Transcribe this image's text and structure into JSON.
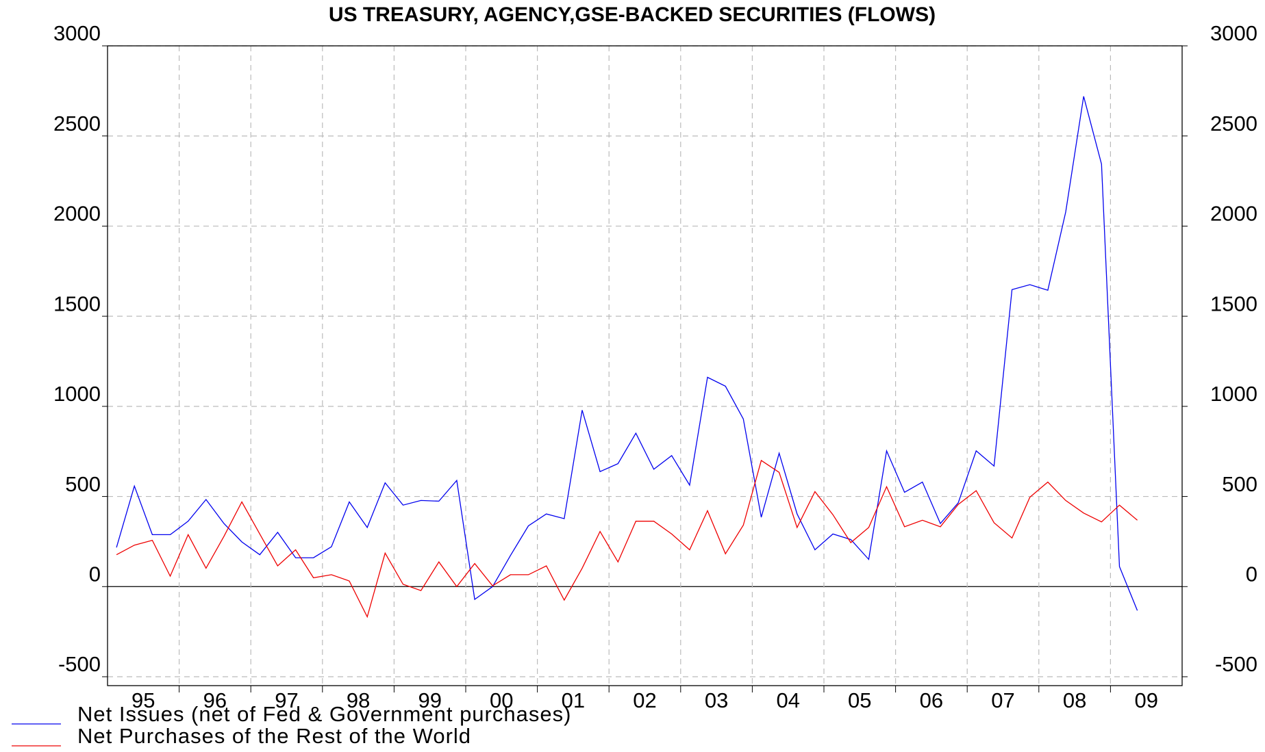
{
  "chart_data": {
    "type": "line",
    "title": "US TREASURY, AGENCY,GSE-BACKED SECURITIES (FLOWS)",
    "x": [
      1995.125,
      1995.375,
      1995.625,
      1995.875,
      1996.125,
      1996.375,
      1996.625,
      1996.875,
      1997.125,
      1997.375,
      1997.625,
      1997.875,
      1998.125,
      1998.375,
      1998.625,
      1998.875,
      1999.125,
      1999.375,
      1999.625,
      1999.875,
      2000.125,
      2000.375,
      2000.625,
      2000.875,
      2001.125,
      2001.375,
      2001.625,
      2001.875,
      2002.125,
      2002.375,
      2002.625,
      2002.875,
      2003.125,
      2003.375,
      2003.625,
      2003.875,
      2004.125,
      2004.375,
      2004.625,
      2004.875,
      2005.125,
      2005.375,
      2005.625,
      2005.875,
      2006.125,
      2006.375,
      2006.625,
      2006.875,
      2007.125,
      2007.375,
      2007.625,
      2007.875,
      2008.125,
      2008.375,
      2008.625,
      2008.875,
      2009.125,
      2009.375
    ],
    "series": [
      {
        "name": "Net Issues (net of Fed & Government purchases)",
        "color": "#0000ee",
        "values": [
          217,
          558,
          288,
          288,
          363,
          483,
          350,
          248,
          177,
          301,
          160,
          160,
          221,
          470,
          328,
          576,
          452,
          478,
          474,
          589,
          -71,
          0,
          173,
          337,
          403,
          377,
          979,
          638,
          682,
          851,
          651,
          727,
          563,
          1161,
          1112,
          930,
          385,
          740,
          403,
          204,
          292,
          261,
          151,
          753,
          523,
          580,
          350,
          465,
          753,
          669,
          1648,
          1675,
          1644,
          2078,
          2720,
          2344,
          111,
          -133
        ]
      },
      {
        "name": "Net Purchases of the Rest of the World",
        "color": "#ee0000",
        "values": [
          177,
          230,
          257,
          58,
          288,
          102,
          279,
          470,
          292,
          115,
          204,
          49,
          66,
          31,
          -168,
          186,
          13,
          -22,
          137,
          0,
          128,
          4,
          66,
          66,
          115,
          -75,
          102,
          306,
          137,
          363,
          363,
          292,
          204,
          421,
          182,
          341,
          700,
          634,
          328,
          527,
          399,
          244,
          328,
          554,
          332,
          368,
          332,
          456,
          532,
          354,
          270,
          496,
          580,
          478,
          408,
          359,
          452,
          368
        ]
      }
    ],
    "xlim": [
      1995,
      2010
    ],
    "xticks": [
      {
        "value": 1995.5,
        "label": "95"
      },
      {
        "value": 1996.5,
        "label": "96"
      },
      {
        "value": 1997.5,
        "label": "97"
      },
      {
        "value": 1998.5,
        "label": "98"
      },
      {
        "value": 1999.5,
        "label": "99"
      },
      {
        "value": 2000.5,
        "label": "00"
      },
      {
        "value": 2001.5,
        "label": "01"
      },
      {
        "value": 2002.5,
        "label": "02"
      },
      {
        "value": 2003.5,
        "label": "03"
      },
      {
        "value": 2004.5,
        "label": "04"
      },
      {
        "value": 2005.5,
        "label": "05"
      },
      {
        "value": 2006.5,
        "label": "06"
      },
      {
        "value": 2007.5,
        "label": "07"
      },
      {
        "value": 2008.5,
        "label": "08"
      },
      {
        "value": 2009.5,
        "label": "09"
      }
    ],
    "xgrid": [
      1996,
      1997,
      1998,
      1999,
      2000,
      2001,
      2002,
      2003,
      2004,
      2005,
      2006,
      2007,
      2008,
      2009
    ],
    "ylim": [
      -500,
      3000
    ],
    "yticks": [
      -500,
      0,
      500,
      1000,
      1500,
      2000,
      2500,
      3000
    ],
    "y2lim": [
      -500,
      3000
    ],
    "y2ticks": [
      -500,
      0,
      500,
      1000,
      1500,
      2000,
      2500,
      3000
    ],
    "grid": true,
    "legend": "bottom-left"
  }
}
